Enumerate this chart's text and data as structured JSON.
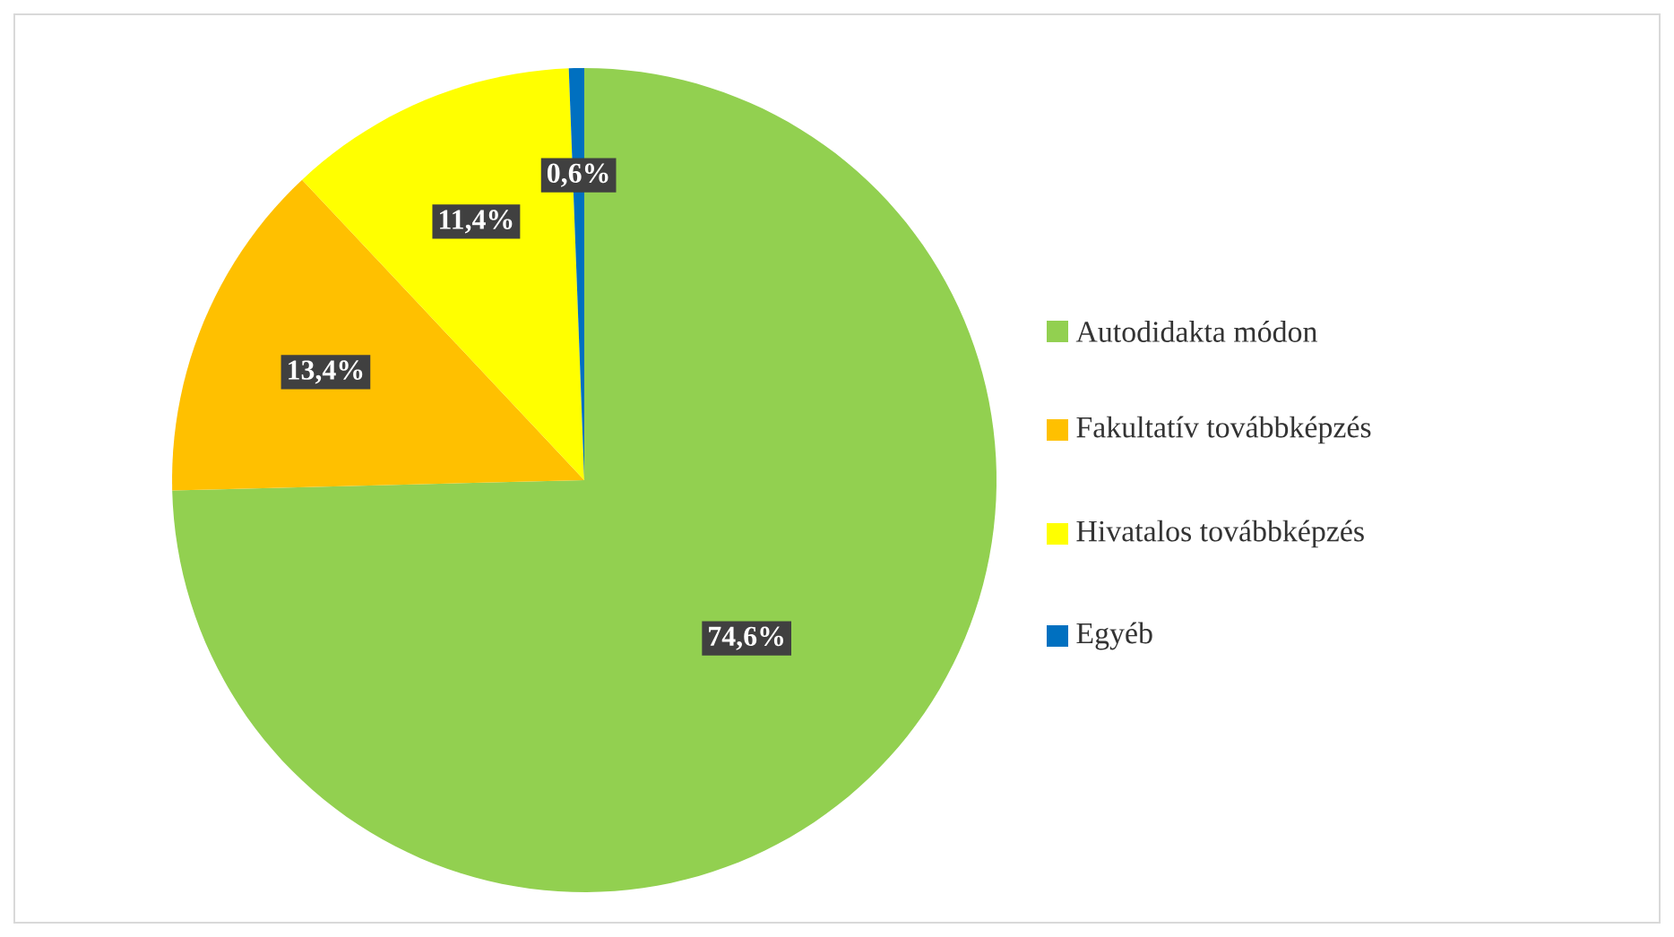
{
  "chart_data": {
    "type": "pie",
    "categories": [
      "Autodidakta módon",
      "Fakultatív továbbképzés",
      "Hivatalos továbbképzés",
      "Egyéb"
    ],
    "values": [
      74.6,
      13.4,
      11.4,
      0.6
    ],
    "colors": [
      "#92d050",
      "#ffc000",
      "#ffff00",
      "#0070c0"
    ],
    "value_labels": [
      "74,6%",
      "13,4%",
      "11,4%",
      "0,6%"
    ],
    "legend": "right"
  }
}
